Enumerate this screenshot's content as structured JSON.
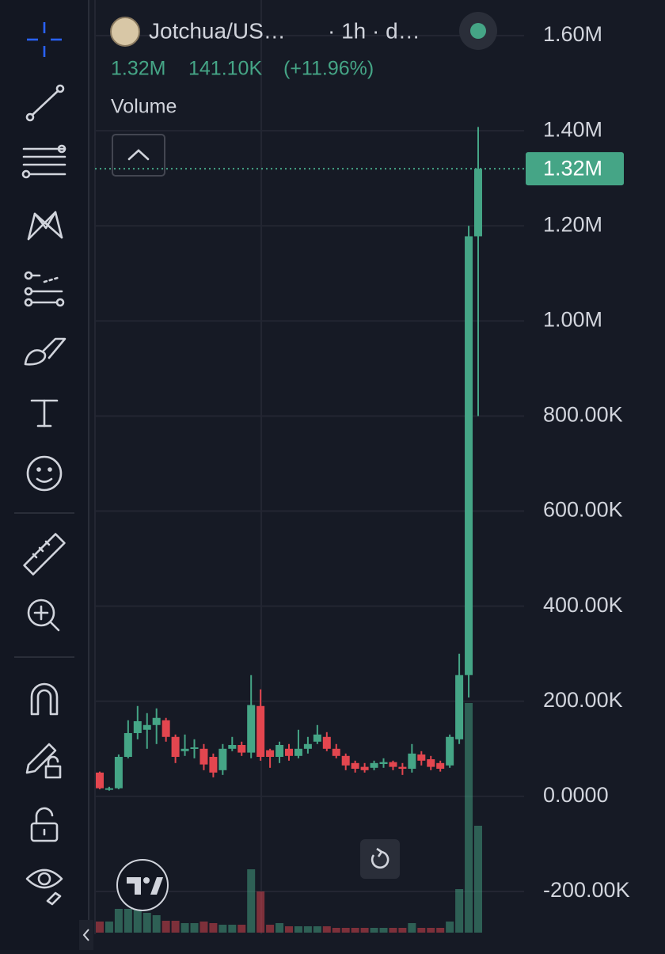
{
  "chart_data": {
    "type": "candlestick",
    "symbol": "Jotchua/US…",
    "interval": "· 1h · d…",
    "legend_values": [
      "1.32M",
      "141.10K",
      "(+11.96%)"
    ],
    "indicator": "Volume",
    "up_color": "#45a586",
    "down_color": "#e3464f",
    "ylim": [
      -290000,
      1675000
    ],
    "yticks": [
      {
        "value": 1600000,
        "label": "1.60M"
      },
      {
        "value": 1400000,
        "label": "1.40M"
      },
      {
        "value": 1200000,
        "label": "1.20M"
      },
      {
        "value": 1000000,
        "label": "1.00M"
      },
      {
        "value": 800000,
        "label": "800.00K"
      },
      {
        "value": 600000,
        "label": "600.00K"
      },
      {
        "value": 400000,
        "label": "400.00K"
      },
      {
        "value": 200000,
        "label": "200.00K"
      },
      {
        "value": 0,
        "label": "0.0000"
      },
      {
        "value": -200000,
        "label": "-200.00K"
      }
    ],
    "grid": true,
    "last_price": {
      "value": 1320000,
      "label": "1.32M"
    },
    "open": [
      50000,
      14000,
      17000,
      83000,
      133000,
      140000,
      150000,
      160000,
      125000,
      95000,
      100000,
      100000,
      83000,
      55000,
      100000,
      108000,
      92000,
      190000,
      97000,
      83000,
      100000,
      85000,
      100000,
      115000,
      125000,
      100000,
      85000,
      70000,
      62000,
      60000,
      68000,
      72000,
      62000,
      58000,
      88000,
      78000,
      70000,
      65000,
      120000,
      255000,
      1178000
    ],
    "high": [
      52000,
      20000,
      88000,
      160000,
      190000,
      175000,
      185000,
      165000,
      130000,
      130000,
      120000,
      110000,
      90000,
      110000,
      125000,
      115000,
      255000,
      225000,
      100000,
      115000,
      110000,
      140000,
      125000,
      150000,
      135000,
      110000,
      90000,
      75000,
      70000,
      75000,
      80000,
      75000,
      70000,
      110000,
      95000,
      85000,
      75000,
      130000,
      300000,
      1200000,
      1408000
    ],
    "low": [
      15000,
      12000,
      15000,
      80000,
      120000,
      100000,
      110000,
      115000,
      70000,
      85000,
      80000,
      55000,
      40000,
      45000,
      95000,
      85000,
      80000,
      75000,
      60000,
      70000,
      75000,
      80000,
      90000,
      110000,
      95000,
      80000,
      55000,
      50000,
      50000,
      55000,
      60000,
      55000,
      45000,
      50000,
      65000,
      55000,
      52000,
      60000,
      110000,
      208000,
      800000
    ],
    "close": [
      17000,
      17000,
      83000,
      133000,
      158000,
      150000,
      165000,
      125000,
      83000,
      100000,
      103000,
      67000,
      50000,
      100000,
      108000,
      92000,
      192000,
      83000,
      83000,
      108000,
      85000,
      100000,
      110000,
      130000,
      100000,
      85000,
      65000,
      58000,
      55000,
      70000,
      72000,
      62000,
      58000,
      90000,
      75000,
      62000,
      58000,
      125000,
      255000,
      1178000,
      1320000
    ],
    "volume": [
      14,
      14,
      30,
      30,
      30,
      25,
      22,
      15,
      15,
      12,
      12,
      14,
      12,
      10,
      10,
      10,
      80,
      52,
      10,
      12,
      8,
      8,
      8,
      8,
      8,
      6,
      6,
      6,
      6,
      6,
      6,
      6,
      6,
      12,
      6,
      6,
      6,
      14,
      55,
      290,
      135
    ]
  }
}
